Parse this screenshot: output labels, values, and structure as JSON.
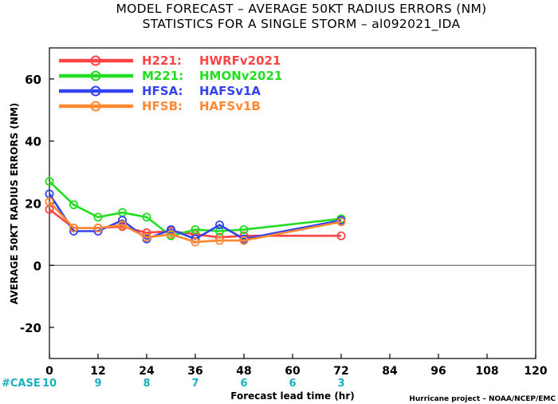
{
  "title_line1": "MODEL FORECAST – AVERAGE 50KT RADIUS ERRORS (NM)",
  "title_line2": "STATISTICS FOR A SINGLE STORM – al092021_IDA",
  "credit": "Hurricane project – NOAA/NCEP/EMC",
  "case_label": "#CASE",
  "chart_data": {
    "type": "line",
    "xlabel": "Forecast lead time (hr)",
    "ylabel": "AVERAGE 50KT RADIUS ERRORS (NM)",
    "xlim": [
      0,
      120
    ],
    "ylim": [
      -30,
      70
    ],
    "xticks": [
      0,
      12,
      24,
      36,
      48,
      60,
      72,
      84,
      96,
      108,
      120
    ],
    "yticks": [
      -20,
      0,
      20,
      40,
      60
    ],
    "zero_line": true,
    "grid": false,
    "legend_position": "top-left",
    "case_counts": [
      {
        "x": 0,
        "n": "10"
      },
      {
        "x": 12,
        "n": "9"
      },
      {
        "x": 24,
        "n": "8"
      },
      {
        "x": 36,
        "n": "7"
      },
      {
        "x": 48,
        "n": "6"
      },
      {
        "x": 60,
        "n": "6"
      },
      {
        "x": 72,
        "n": "3"
      }
    ],
    "series": [
      {
        "code": "H221:",
        "name": "HWRFv2021",
        "color": "#ff4444",
        "x": [
          0,
          6,
          12,
          18,
          24,
          30,
          36,
          42,
          48,
          72
        ],
        "y": [
          18,
          12,
          12,
          12.5,
          10.5,
          11,
          10,
          9,
          9.5,
          9.5
        ]
      },
      {
        "code": "M221:",
        "name": "HMONv2021",
        "color": "#22dd22",
        "x": [
          0,
          6,
          12,
          18,
          24,
          30,
          36,
          42,
          48,
          72
        ],
        "y": [
          27,
          19.5,
          15.5,
          17,
          15.5,
          9.5,
          11.5,
          11,
          11.5,
          15
        ]
      },
      {
        "code": "HFSA:",
        "name": "HAFSv1A",
        "color": "#3344ee",
        "x": [
          0,
          6,
          12,
          18,
          24,
          30,
          36,
          42,
          48,
          72
        ],
        "y": [
          23,
          11,
          11,
          14.5,
          8.5,
          11.5,
          8.5,
          13,
          8.5,
          14.5
        ]
      },
      {
        "code": "HFSB:",
        "name": "HAFSv1B",
        "color": "#ff8833",
        "x": [
          0,
          6,
          12,
          18,
          24,
          30,
          36,
          42,
          48,
          72
        ],
        "y": [
          20.5,
          12,
          12,
          13,
          9,
          10,
          7.5,
          8,
          8,
          14
        ]
      }
    ]
  }
}
